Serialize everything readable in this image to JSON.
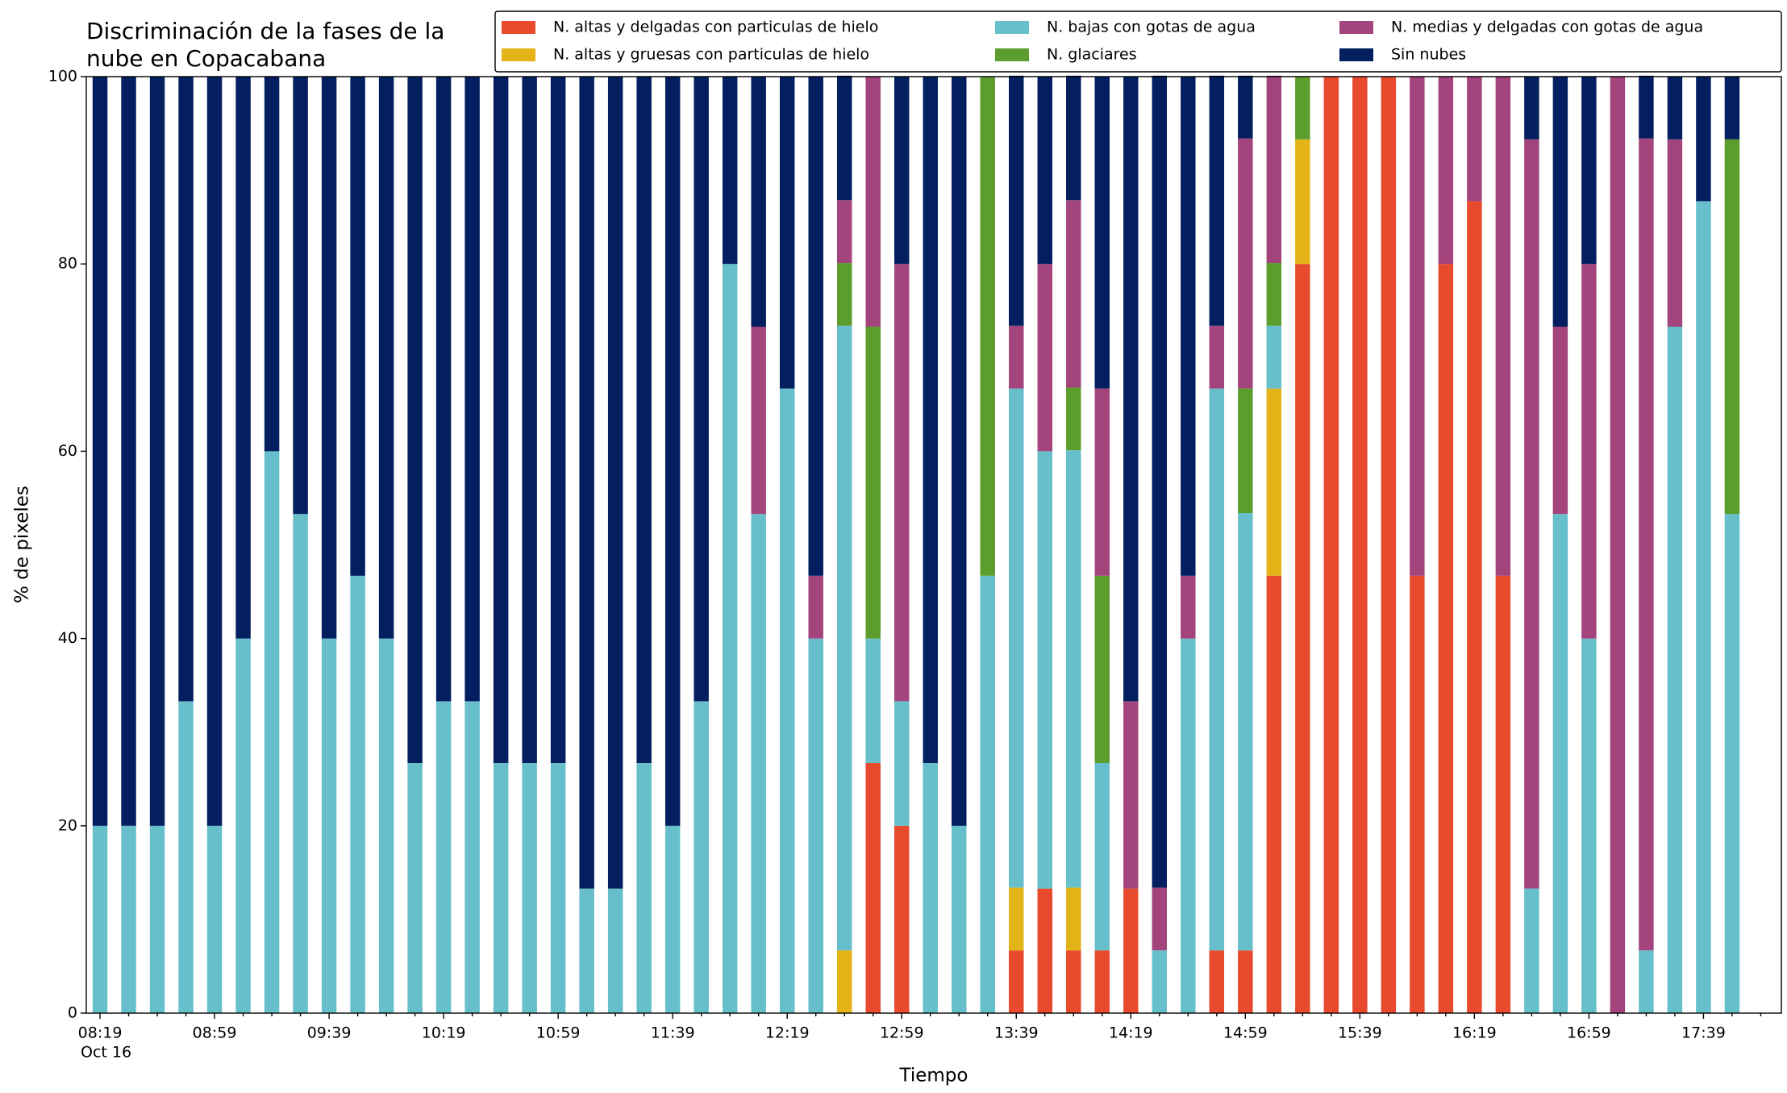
{
  "chart_data": {
    "type": "stacked_bar",
    "title": [
      "Discriminación de la fases de la",
      "nube en Copacabana"
    ],
    "x_label": "Tiempo",
    "y_label": "% de pixeles",
    "categories": [
      "08:19",
      null,
      null,
      null,
      "08:59",
      null,
      null,
      null,
      "09:39",
      null,
      null,
      null,
      "10:19",
      null,
      null,
      null,
      "10:59",
      null,
      null,
      null,
      "11:39",
      null,
      null,
      null,
      "12:19",
      null,
      null,
      null,
      "12:59",
      null,
      null,
      null,
      "13:39",
      null,
      null,
      null,
      "14:19",
      null,
      null,
      null,
      "14:59",
      null,
      null,
      null,
      "15:39",
      null,
      null,
      null,
      "16:19",
      null,
      null,
      null,
      "16:59",
      null,
      null,
      null,
      "17:39",
      null
    ],
    "date_label": "Oct 16",
    "ylim": [
      0,
      100
    ],
    "yticks": [
      0,
      20,
      40,
      60,
      80,
      100
    ],
    "grid": false,
    "legend": "upper right",
    "series": [
      {
        "name": "N. altas y delgadas con particulas de hielo",
        "color": "#e84a2d",
        "values": [
          0,
          0,
          0,
          0,
          0,
          0,
          0,
          0,
          0,
          0,
          0,
          0,
          0,
          0,
          0,
          0,
          0,
          0,
          0,
          0,
          0,
          0,
          0,
          0,
          0,
          0,
          0,
          26.7,
          20,
          0,
          0,
          0,
          6.7,
          13.3,
          6.7,
          6.7,
          13.3,
          0,
          0,
          6.7,
          6.7,
          46.7,
          80,
          100,
          100,
          100,
          46.7,
          80,
          86.7,
          46.7,
          0,
          0,
          0,
          0,
          0,
          0,
          0,
          0
        ]
      },
      {
        "name": "N. altas y gruesas con particulas de hielo",
        "color": "#e3b318",
        "values": [
          0,
          0,
          0,
          0,
          0,
          0,
          0,
          0,
          0,
          0,
          0,
          0,
          0,
          0,
          0,
          0,
          0,
          0,
          0,
          0,
          0,
          0,
          0,
          0,
          0,
          0,
          6.7,
          0,
          0,
          0,
          0,
          0,
          6.7,
          0,
          6.7,
          0,
          0,
          0,
          0,
          0,
          0,
          20,
          13.3,
          0,
          0,
          0,
          0,
          0,
          0,
          0,
          0,
          0,
          0,
          0,
          0,
          0,
          0,
          0
        ]
      },
      {
        "name": "N. bajas con gotas de agua",
        "color": "#66bfca",
        "values": [
          20,
          20,
          20,
          33.3,
          20,
          40,
          60,
          53.3,
          40,
          46.7,
          40,
          26.7,
          33.3,
          33.3,
          26.7,
          26.7,
          26.7,
          13.3,
          13.3,
          26.7,
          20,
          33.3,
          80,
          53.3,
          66.7,
          40,
          66.7,
          13.3,
          13.3,
          26.7,
          20,
          46.7,
          53.3,
          46.7,
          46.7,
          20,
          0,
          6.7,
          40,
          60,
          46.7,
          6.7,
          0,
          0,
          0,
          0,
          0,
          0,
          0,
          0,
          13.3,
          53.3,
          40,
          0,
          6.7,
          73.3,
          86.7,
          53.3
        ]
      },
      {
        "name": "N. glaciares",
        "color": "#5c9e2e",
        "values": [
          0,
          0,
          0,
          0,
          0,
          0,
          0,
          0,
          0,
          0,
          0,
          0,
          0,
          0,
          0,
          0,
          0,
          0,
          0,
          0,
          0,
          0,
          0,
          0,
          0,
          0,
          6.7,
          33.3,
          0,
          0,
          0,
          53.3,
          0,
          0,
          6.7,
          20,
          0,
          0,
          0,
          0,
          13.3,
          6.7,
          6.7,
          0,
          0,
          0,
          0,
          0,
          0,
          0,
          0,
          0,
          0,
          0,
          0,
          0,
          0,
          40
        ]
      },
      {
        "name": "N. medias y delgadas con gotas de agua",
        "color": "#a3457c",
        "values": [
          0,
          0,
          0,
          0,
          0,
          0,
          0,
          0,
          0,
          0,
          0,
          0,
          0,
          0,
          0,
          0,
          0,
          0,
          0,
          0,
          0,
          0,
          0,
          20,
          0,
          6.7,
          6.7,
          26.7,
          46.7,
          0,
          0,
          0,
          6.7,
          20,
          20,
          20,
          20,
          6.7,
          6.7,
          6.7,
          26.7,
          20,
          0,
          0,
          0,
          0,
          53.3,
          20,
          13.3,
          53.3,
          80,
          20,
          40,
          100,
          86.7,
          20,
          0,
          0
        ]
      },
      {
        "name": "Sin nubes",
        "color": "#031f5f",
        "values": [
          80,
          80,
          80,
          66.7,
          80,
          60,
          40,
          46.7,
          60,
          53.3,
          60,
          73.3,
          66.7,
          66.7,
          73.3,
          73.3,
          73.3,
          86.7,
          86.7,
          73.3,
          80,
          66.7,
          20,
          26.7,
          33.3,
          53.3,
          13.3,
          0,
          20,
          73.3,
          80,
          0,
          26.7,
          20,
          13.3,
          33.3,
          66.7,
          86.7,
          53.3,
          26.7,
          6.7,
          0,
          0,
          0,
          0,
          0,
          0,
          0,
          0,
          0,
          6.7,
          26.7,
          20,
          0,
          6.7,
          6.7,
          13.3,
          6.7
        ]
      }
    ]
  }
}
